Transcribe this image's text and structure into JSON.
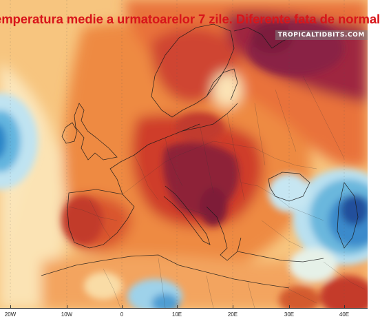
{
  "title": "emperatura medie a urmatoarelor 7 zile. Diferente fata de normal",
  "watermark": "TROPICALTIDBITS.COM",
  "axis": {
    "ticks": [
      "20W",
      "10W",
      "0",
      "10E",
      "20E",
      "30E",
      "40E"
    ]
  },
  "colors": {
    "title": "#d8151a",
    "warm_dark": "#6e1b3a",
    "warm_red": "#c0392b",
    "warm_orange": "#e8712e",
    "warm_light": "#f6b56a",
    "neutral": "#fbe9c4",
    "cool_light": "#bfe4f2",
    "cool": "#3c8fd0",
    "cool_dark": "#1f4f9c"
  }
}
